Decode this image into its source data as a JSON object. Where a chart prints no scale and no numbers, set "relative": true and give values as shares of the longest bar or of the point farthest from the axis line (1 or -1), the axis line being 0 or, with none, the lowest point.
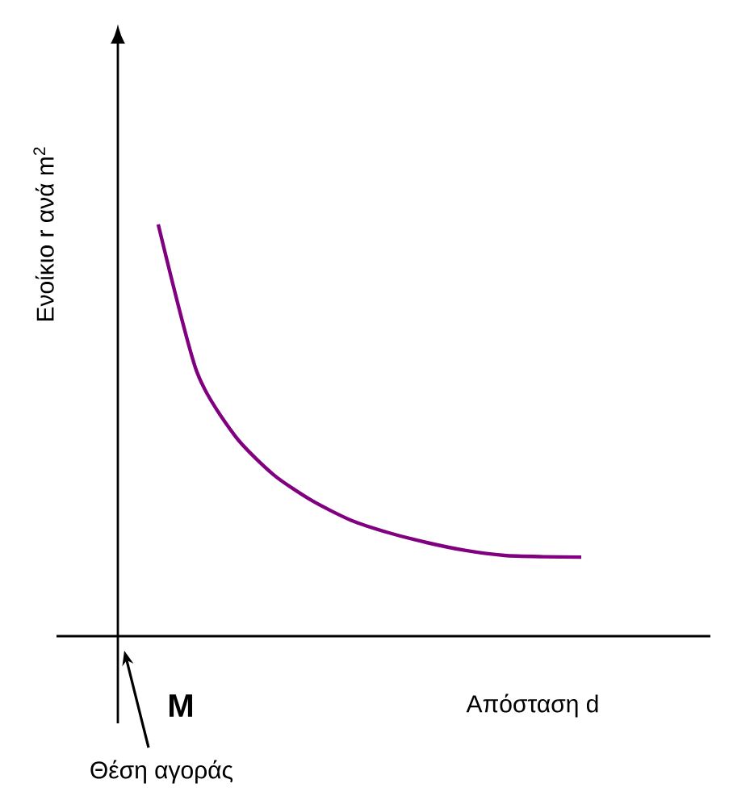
{
  "chart_data": {
    "type": "line",
    "relative": true,
    "xlabel": "Απόσταση d",
    "ylabel": "Ενοίκιο r ανά m$^{2}$",
    "categories": [
      null,
      null,
      null,
      null,
      null,
      null,
      null,
      null,
      null,
      null,
      null,
      null
    ],
    "series": [
      {
        "color": "#800080",
        "values": [
          1.0,
          0.643,
          0.486,
          0.392,
          0.329,
          0.282,
          0.251,
          0.227,
          0.208,
          0.196,
          0.193,
          0.192
        ]
      }
    ],
    "annotations": [
      "**M**",
      "Θέση αγοράς"
    ]
  }
}
